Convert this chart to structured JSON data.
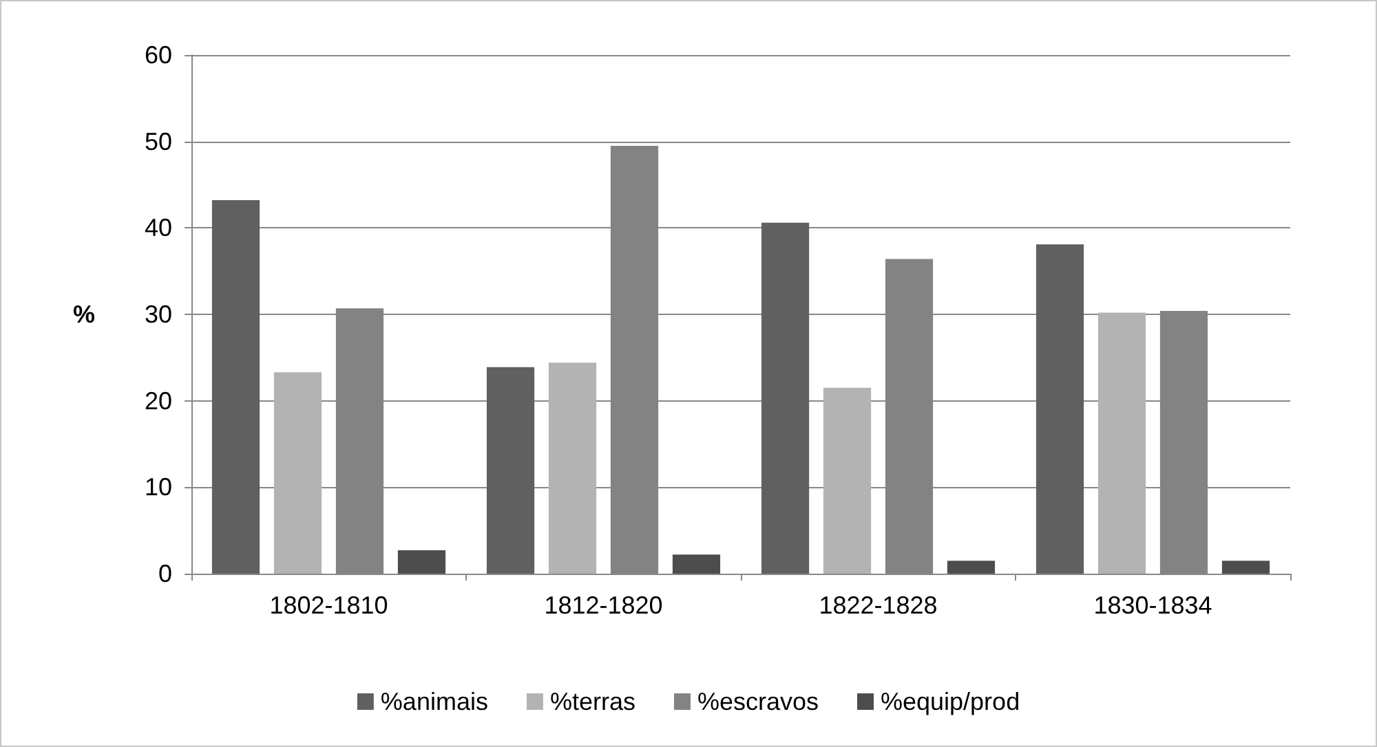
{
  "chart_data": {
    "type": "bar",
    "ylabel": "%",
    "categories": [
      "1802-1810",
      "1812-1820",
      "1822-1828",
      "1830-1834"
    ],
    "series": [
      {
        "name": "%animais",
        "color": "#606060",
        "values": [
          43.2,
          23.9,
          40.6,
          38.1
        ]
      },
      {
        "name": "%terras",
        "color": "#b3b3b3",
        "values": [
          23.3,
          24.4,
          21.5,
          30.2
        ]
      },
      {
        "name": "%escravos",
        "color": "#838383",
        "values": [
          30.7,
          49.5,
          36.4,
          30.4
        ]
      },
      {
        "name": "%equip/prod",
        "color": "#4d4d4d",
        "values": [
          2.7,
          2.2,
          1.5,
          1.5
        ]
      }
    ],
    "ylim": [
      0,
      60
    ],
    "yticks": [
      0,
      10,
      20,
      30,
      40,
      50,
      60
    ],
    "grid": "y",
    "legend": "bottom"
  }
}
